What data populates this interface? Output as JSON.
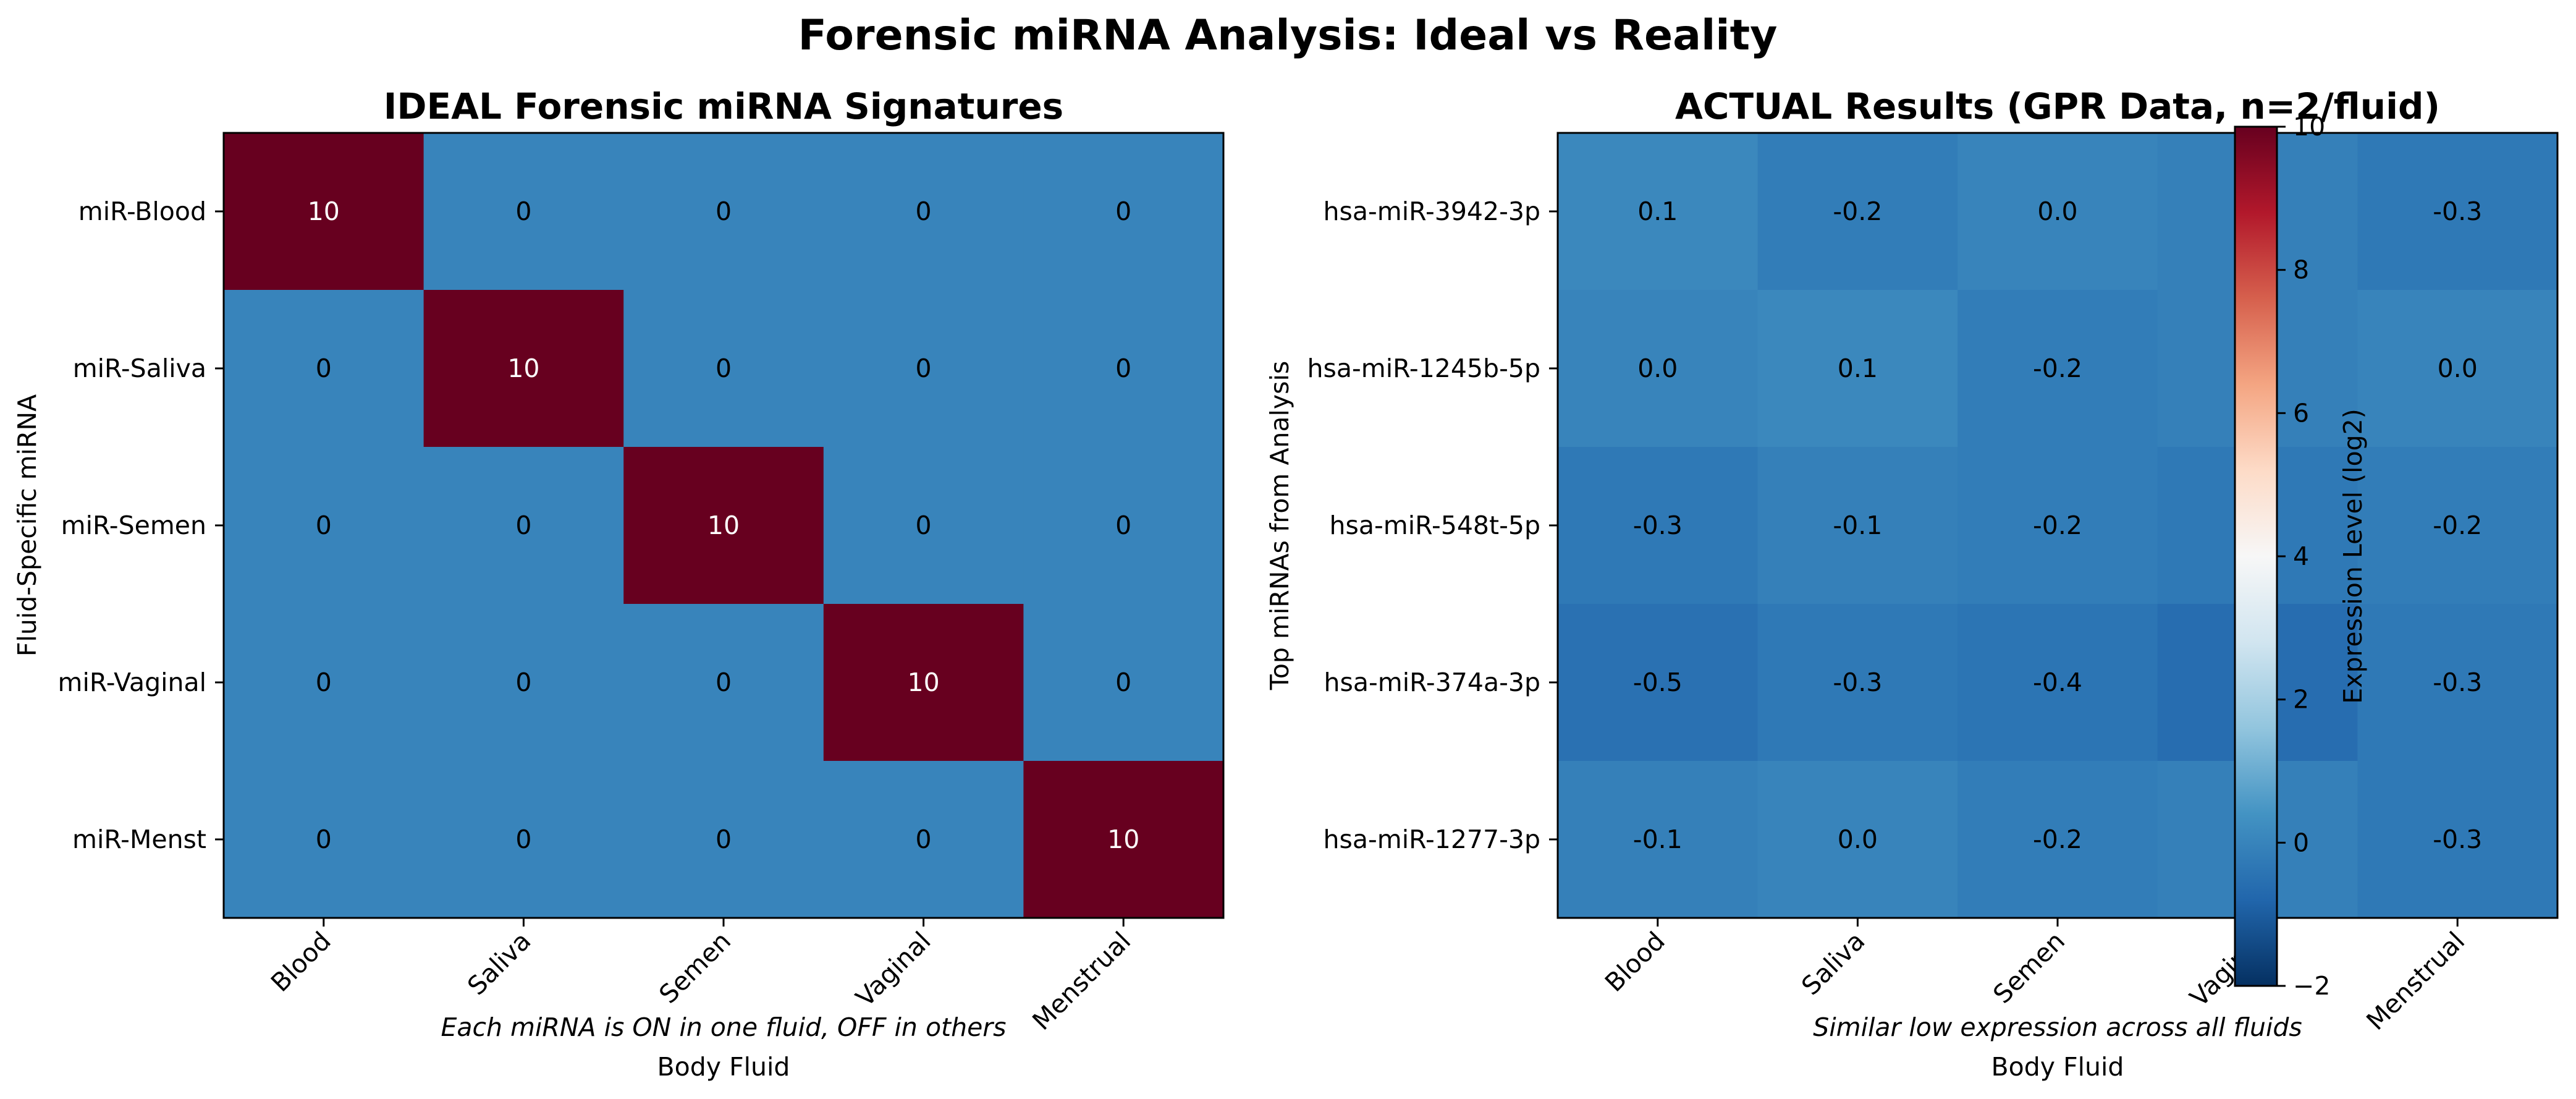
{
  "title": "Forensic miRNA Analysis: Ideal vs Reality",
  "chart_data": [
    {
      "type": "heatmap",
      "title": "IDEAL Forensic miRNA Signatures",
      "xlabel": "Body Fluid",
      "ylabel": "Fluid-Specific miRNA",
      "note": "Each miRNA is ON in one fluid, OFF in others",
      "categories": [
        "Blood",
        "Saliva",
        "Semen",
        "Vaginal",
        "Menstrual"
      ],
      "rows": [
        "miR-Blood",
        "miR-Saliva",
        "miR-Semen",
        "miR-Vaginal",
        "miR-Menst"
      ],
      "values": [
        [
          10,
          0,
          0,
          0,
          0
        ],
        [
          0,
          10,
          0,
          0,
          0
        ],
        [
          0,
          0,
          10,
          0,
          0
        ],
        [
          0,
          0,
          0,
          10,
          0
        ],
        [
          0,
          0,
          0,
          0,
          10
        ]
      ],
      "labels": [
        [
          "10",
          "0",
          "0",
          "0",
          "0"
        ],
        [
          "0",
          "10",
          "0",
          "0",
          "0"
        ],
        [
          "0",
          "0",
          "10",
          "0",
          "0"
        ],
        [
          "0",
          "0",
          "0",
          "10",
          "0"
        ],
        [
          "0",
          "0",
          "0",
          "0",
          "10"
        ]
      ],
      "colormap": "RdBu_r",
      "vmin": -2,
      "vmax": 10
    },
    {
      "type": "heatmap",
      "title": "ACTUAL Results (GPR Data, n=2/fluid)",
      "xlabel": "Body Fluid",
      "ylabel": "Top miRNAs from Analysis",
      "note": "Similar low expression across all fluids",
      "categories": [
        "Blood",
        "Saliva",
        "Semen",
        "Vaginal",
        "Menstrual"
      ],
      "rows": [
        "hsa-miR-3942-3p",
        "hsa-miR-1245b-5p",
        "hsa-miR-548t-5p",
        "hsa-miR-374a-3p",
        "hsa-miR-1277-3p"
      ],
      "values": [
        [
          0.1,
          -0.2,
          0.0,
          -0.1,
          -0.3
        ],
        [
          0.0,
          0.1,
          -0.2,
          -0.1,
          0.0
        ],
        [
          -0.3,
          -0.1,
          -0.2,
          -0.3,
          -0.2
        ],
        [
          -0.5,
          -0.3,
          -0.4,
          -0.6,
          -0.3
        ],
        [
          -0.1,
          0.0,
          -0.2,
          -0.1,
          -0.3
        ]
      ],
      "labels": [
        [
          "0.1",
          "-0.2",
          "0.0",
          "",
          "-0.3"
        ],
        [
          "0.0",
          "0.1",
          "-0.2",
          "",
          "0.0"
        ],
        [
          "-0.3",
          "-0.1",
          "-0.2",
          "",
          "-0.2"
        ],
        [
          "-0.5",
          "-0.3",
          "-0.4",
          "",
          "-0.3"
        ],
        [
          "-0.1",
          "0.0",
          "-0.2",
          "",
          "-0.3"
        ]
      ],
      "colormap": "RdBu_r",
      "vmin": -2,
      "vmax": 10,
      "colorbar": {
        "label": "Expression Level (log2)",
        "ticks": [
          10,
          8,
          6,
          4,
          2,
          0,
          -2
        ],
        "tick_labels": [
          "10",
          "8",
          "6",
          "4",
          "2",
          "0",
          "−2"
        ]
      }
    }
  ]
}
